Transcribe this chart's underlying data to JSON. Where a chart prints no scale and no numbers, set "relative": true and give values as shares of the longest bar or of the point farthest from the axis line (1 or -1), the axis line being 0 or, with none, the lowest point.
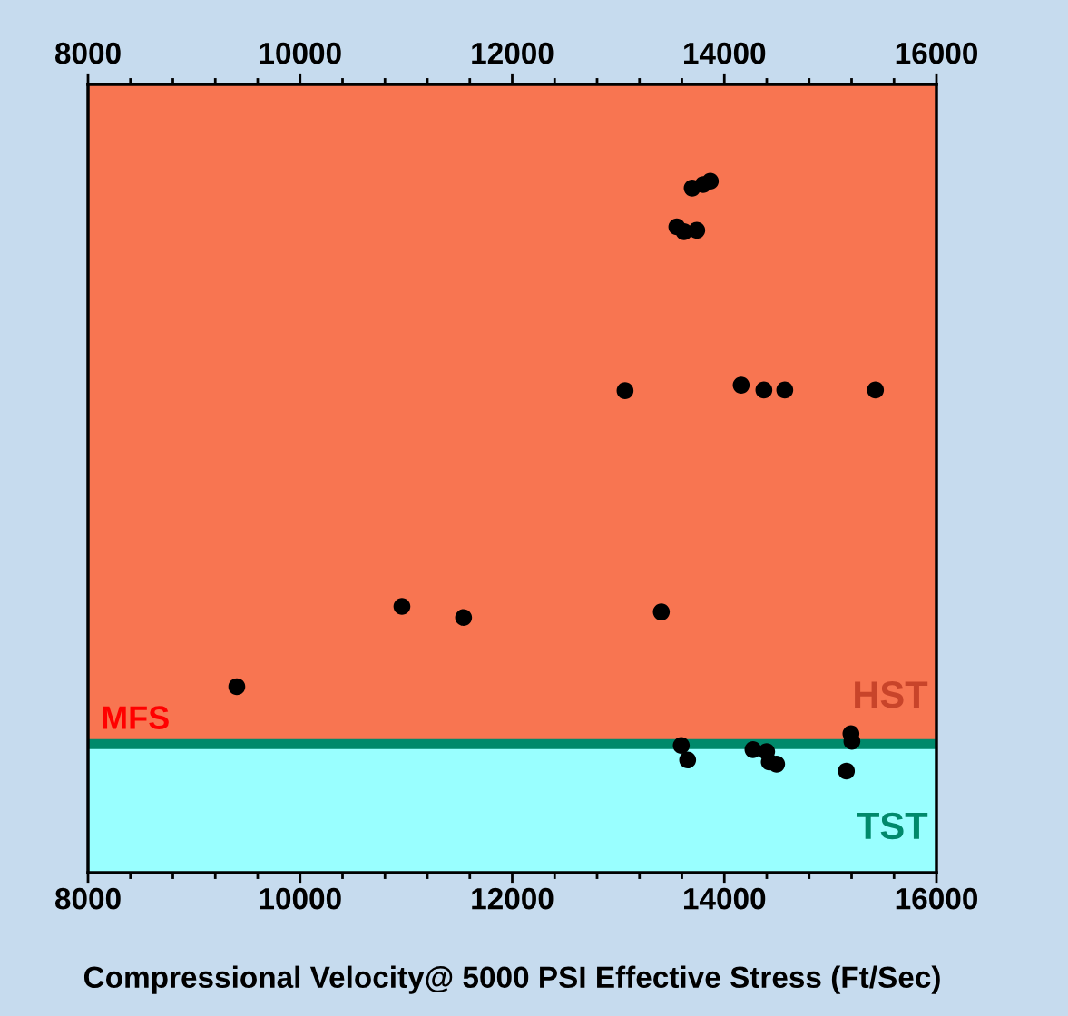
{
  "chart_data": {
    "type": "scatter",
    "xlabel": "Compressional Velocity@ 5000 PSI Effective Stress (Ft/Sec)",
    "relative": true,
    "marker": "circle",
    "grid": false,
    "x": [
      13697,
      13800,
      13868,
      13552,
      13620,
      13740,
      13064,
      14159,
      14373,
      14570,
      15425,
      10960,
      11541,
      13406,
      9403,
      13594,
      13654,
      14270,
      14399,
      14424,
      14493,
      15194,
      15203,
      15151
    ],
    "series": [
      {
        "color": "#000000",
        "values": [
          0.99,
          0.995,
          1,
          0.934,
          0.927,
          0.929,
          0.697,
          0.705,
          0.698,
          0.698,
          0.698,
          0.385,
          0.369,
          0.377,
          0.269,
          0.184,
          0.163,
          0.178,
          0.175,
          0.16,
          0.157,
          0.201,
          0.19,
          0.147
        ]
      }
    ],
    "xlim": [
      8000,
      16000
    ],
    "xticks": [
      8000,
      {
        "value": 8400,
        "label": null
      },
      {
        "value": 8800,
        "label": null
      },
      {
        "value": 9200,
        "label": null
      },
      {
        "value": 9600,
        "label": null
      },
      10000,
      {
        "value": 10400,
        "label": null
      },
      {
        "value": 10800,
        "label": null
      },
      {
        "value": 11200,
        "label": null
      },
      {
        "value": 11600,
        "label": null
      },
      12000,
      {
        "value": 12400,
        "label": null
      },
      {
        "value": 12800,
        "label": null
      },
      {
        "value": 13200,
        "label": null
      },
      {
        "value": 13600,
        "label": null
      },
      14000,
      {
        "value": 14400,
        "label": null
      },
      {
        "value": 14800,
        "label": null
      },
      {
        "value": 15200,
        "label": null
      },
      {
        "value": 15600,
        "label": null
      },
      16000
    ],
    "x2lim": [
      8000,
      16000
    ],
    "x2ticks": [
      8000,
      {
        "value": 8400,
        "label": null
      },
      {
        "value": 8800,
        "label": null
      },
      {
        "value": 9200,
        "label": null
      },
      {
        "value": 9600,
        "label": null
      },
      10000,
      {
        "value": 10400,
        "label": null
      },
      {
        "value": 10800,
        "label": null
      },
      {
        "value": 11200,
        "label": null
      },
      {
        "value": 11600,
        "label": null
      },
      12000,
      {
        "value": 12400,
        "label": null
      },
      {
        "value": 12800,
        "label": null
      },
      {
        "value": 13200,
        "label": null
      },
      {
        "value": 13600,
        "label": null
      },
      14000,
      {
        "value": 14400,
        "label": null
      },
      {
        "value": 14800,
        "label": null
      },
      {
        "value": 15200,
        "label": null
      },
      {
        "value": 15600,
        "label": null
      },
      16000
    ],
    "bands": [
      {
        "axis": "y",
        "from": 0,
        "to": 0.186,
        "label": "TST",
        "color": "#99ffff"
      },
      {
        "axis": "y",
        "from": 0.186,
        "to": 1.14,
        "label": "HST",
        "color": "#f87551"
      }
    ],
    "ref_lines": [
      {
        "axis": "y",
        "value": 0.186,
        "label": "MFS",
        "color": "#00896b",
        "line_style": "solid"
      }
    ]
  }
}
